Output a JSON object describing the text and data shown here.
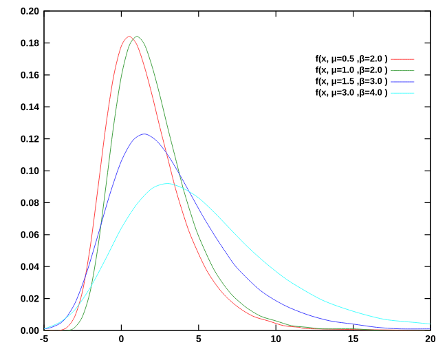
{
  "chart_data": {
    "type": "line",
    "xlim": [
      -5,
      20
    ],
    "ylim": [
      0,
      0.2
    ],
    "xticks": [
      -5,
      0,
      5,
      10,
      15,
      20
    ],
    "yticks": [
      {
        "value": 0,
        "label": "0.00"
      },
      {
        "value": 0.02,
        "label": "0.02"
      },
      {
        "value": 0.04,
        "label": "0.04"
      },
      {
        "value": 0.06,
        "label": "0.06"
      },
      {
        "value": 0.08,
        "label": "0.08"
      },
      {
        "value": 0.1,
        "label": "0.10"
      },
      {
        "value": 0.12,
        "label": "0.12"
      },
      {
        "value": 0.14,
        "label": "0.14"
      },
      {
        "value": 0.16,
        "label": "0.16"
      },
      {
        "value": 0.18,
        "label": "0.18"
      },
      {
        "value": 0.2,
        "label": "0.20"
      }
    ],
    "legend": "top right",
    "marker": "none",
    "line_style": "solid",
    "series": [
      {
        "name": "f(x, μ=0.5 ,β=2.0 )",
        "color": "#ff4040",
        "x": [
          -5,
          -4.5,
          -4,
          -3.5,
          -3,
          -2.5,
          -2,
          -1.5,
          -1,
          -0.5,
          0,
          0.5,
          1,
          1.5,
          2,
          2.5,
          3,
          3.5,
          4,
          4.5,
          5.5,
          6.5,
          7.5,
          8.5,
          9.5,
          10.5,
          11.5,
          12.5,
          20
        ],
        "values": [
          0.0,
          0.0,
          0.0,
          0.002,
          0.009,
          0.025,
          0.053,
          0.09,
          0.128,
          0.159,
          0.178,
          0.184,
          0.179,
          0.165,
          0.147,
          0.127,
          0.108,
          0.089,
          0.073,
          0.059,
          0.038,
          0.024,
          0.015,
          0.009,
          0.006,
          0.003,
          0.002,
          0.001,
          0.0
        ]
      },
      {
        "name": "f(x, μ=1.0 ,β=2.0 )",
        "color": "#40a040",
        "x": [
          -5,
          -3.5,
          -3,
          -2.5,
          -2,
          -1.5,
          -1,
          -0.5,
          0,
          0.5,
          1,
          1.5,
          2,
          2.5,
          3,
          3.5,
          4,
          4.5,
          5,
          6,
          7,
          8,
          9,
          10,
          11,
          12,
          13,
          15,
          17,
          20
        ],
        "values": [
          0.0,
          0.0,
          0.002,
          0.009,
          0.025,
          0.053,
          0.09,
          0.128,
          0.159,
          0.178,
          0.184,
          0.179,
          0.165,
          0.147,
          0.127,
          0.108,
          0.089,
          0.073,
          0.059,
          0.038,
          0.024,
          0.015,
          0.009,
          0.006,
          0.003,
          0.002,
          0.001,
          0.001,
          0.0,
          0.0
        ]
      },
      {
        "name": "f(x, μ=1.5 ,β=3.0 )",
        "color": "#4040ff",
        "x": [
          -5,
          -4.5,
          -3.75,
          -3,
          -2.25,
          -1.5,
          -0.75,
          0,
          0.75,
          1.5,
          2.25,
          3,
          3.75,
          4.5,
          5.25,
          6,
          6.75,
          7.5,
          9,
          10.5,
          12,
          13.5,
          15,
          16.5,
          18,
          20
        ],
        "values": [
          0.001,
          0.002,
          0.006,
          0.017,
          0.036,
          0.06,
          0.085,
          0.106,
          0.119,
          0.123,
          0.119,
          0.11,
          0.098,
          0.085,
          0.072,
          0.06,
          0.049,
          0.039,
          0.025,
          0.016,
          0.01,
          0.006,
          0.004,
          0.002,
          0.001,
          0.001
        ]
      },
      {
        "name": "f(x, μ=3.0 ,β=4.0 )",
        "color": "#40ffff",
        "x": [
          -5,
          -4,
          -3,
          -2,
          -1,
          0,
          1,
          2,
          3,
          4,
          5,
          6,
          7,
          8,
          9,
          10,
          11,
          13,
          15,
          17,
          19,
          20
        ],
        "values": [
          0.001,
          0.005,
          0.013,
          0.027,
          0.045,
          0.064,
          0.079,
          0.089,
          0.092,
          0.089,
          0.083,
          0.074,
          0.064,
          0.054,
          0.045,
          0.037,
          0.03,
          0.019,
          0.012,
          0.007,
          0.005,
          0.004
        ]
      }
    ]
  }
}
